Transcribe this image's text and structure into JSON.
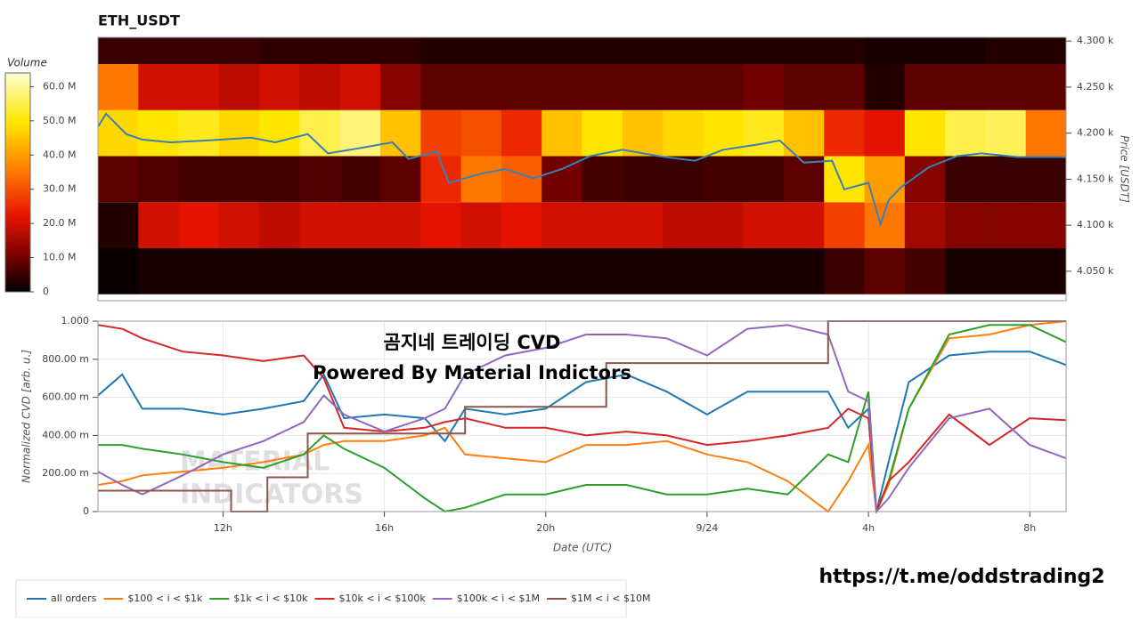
{
  "chart_data": [
    {
      "type": "heatmap",
      "title": "ETH_USDT",
      "colorbar_title": "Volume",
      "y_label": "Price [USDT]",
      "xlim": [
        8.9,
        32.9
      ],
      "ylim": [
        4018,
        4304
      ],
      "zlim": [
        0,
        64
      ],
      "yticks": [
        {
          "value": 4050,
          "label": "4.050 k"
        },
        {
          "value": 4100,
          "label": "4.100 k"
        },
        {
          "value": 4150,
          "label": "4.150 k"
        },
        {
          "value": 4200,
          "label": "4.200 k"
        },
        {
          "value": 4250,
          "label": "4.250 k"
        },
        {
          "value": 4300,
          "label": "4.300 k"
        }
      ],
      "zticks": [
        0,
        {
          "value": 10,
          "label": "10.0 M"
        },
        {
          "value": 20,
          "label": "20.0 M"
        },
        {
          "value": 30,
          "label": "30.0 M"
        },
        {
          "value": 40,
          "label": "40.0 M"
        },
        {
          "value": 50,
          "label": "50.0 M"
        },
        {
          "value": 60,
          "label": "60.0 M"
        }
      ],
      "xbins": [
        8.9,
        9.9,
        10.9,
        11.9,
        12.9,
        13.9,
        14.9,
        15.9,
        16.9,
        17.9,
        18.9,
        19.9,
        20.9,
        21.9,
        22.9,
        23.9,
        24.9,
        25.9,
        26.9,
        27.9,
        28.9,
        29.9,
        30.9,
        31.9,
        32.9
      ],
      "ybins": [
        4025,
        4075,
        4125,
        4175,
        4225,
        4275,
        4325
      ],
      "z": [
        [
          1,
          2,
          2,
          2,
          2,
          2,
          2,
          2,
          2,
          2,
          2,
          2,
          2,
          2,
          2,
          2,
          2,
          2,
          5,
          8,
          6,
          2,
          2,
          2
        ],
        [
          3,
          20,
          22,
          20,
          18,
          20,
          20,
          20,
          22,
          20,
          22,
          20,
          20,
          20,
          18,
          18,
          20,
          20,
          28,
          35,
          15,
          12,
          12,
          12
        ],
        [
          8,
          7,
          6,
          6,
          6,
          7,
          6,
          8,
          25,
          35,
          32,
          10,
          6,
          5,
          5,
          6,
          6,
          8,
          50,
          40,
          12,
          5,
          5,
          5
        ],
        [
          48,
          50,
          52,
          48,
          50,
          55,
          58,
          45,
          28,
          30,
          25,
          45,
          50,
          45,
          48,
          50,
          52,
          45,
          25,
          22,
          50,
          55,
          56,
          35
        ],
        [
          35,
          20,
          20,
          18,
          20,
          18,
          20,
          12,
          8,
          8,
          8,
          8,
          8,
          8,
          8,
          8,
          10,
          8,
          8,
          3,
          8,
          8,
          8,
          8
        ],
        [
          5,
          5,
          5,
          5,
          4,
          4,
          4,
          4,
          3,
          3,
          3,
          3,
          3,
          3,
          3,
          3,
          3,
          3,
          3,
          2,
          2,
          2,
          3,
          3
        ]
      ],
      "line": {
        "color": "#3a7fb5",
        "x": [
          8.9,
          9.1,
          9.6,
          10.0,
          10.7,
          11.6,
          12.7,
          13.3,
          14.1,
          14.6,
          15.3,
          16.2,
          16.6,
          17.3,
          17.6,
          18.4,
          19.0,
          19.7,
          20.4,
          21.1,
          21.9,
          22.8,
          23.7,
          24.4,
          25.3,
          25.8,
          26.4,
          27.1,
          27.4,
          28.0,
          28.3,
          28.5,
          28.8,
          29.5,
          30.2,
          30.8,
          31.7,
          32.9
        ],
        "values": [
          4207,
          4221,
          4199,
          4193,
          4190,
          4192,
          4195,
          4190,
          4199,
          4178,
          4183,
          4190,
          4172,
          4180,
          4146,
          4156,
          4161,
          4151,
          4161,
          4175,
          4182,
          4175,
          4170,
          4182,
          4188,
          4192,
          4168,
          4170,
          4139,
          4146,
          4101,
          4127,
          4141,
          4163,
          4175,
          4178,
          4174,
          4174
        ]
      }
    },
    {
      "type": "line",
      "x_label": "Date (UTC)",
      "y_label": "Normalized CVD [arb. u.]",
      "overlay": [
        "곰지네 트레이딩 CVD",
        "Powered By Material Indictors"
      ],
      "watermark": [
        "MATERIAL",
        "INDICATORS"
      ],
      "xlim": [
        8.9,
        32.9
      ],
      "ylim": [
        0,
        1
      ],
      "grid": true,
      "xticks": [
        {
          "value": 12,
          "label": "12h"
        },
        {
          "value": 16,
          "label": "16h"
        },
        {
          "value": 20,
          "label": "20h"
        },
        {
          "value": 24,
          "label": "9/24"
        },
        {
          "value": 28,
          "label": "4h"
        },
        {
          "value": 32,
          "label": "8h"
        }
      ],
      "yticks": [
        0,
        {
          "value": 0.2,
          "label": "200.00 m"
        },
        {
          "value": 0.4,
          "label": "400.00 m"
        },
        {
          "value": 0.6,
          "label": "600.00 m"
        },
        {
          "value": 0.8,
          "label": "800.00 m"
        },
        {
          "value": 1,
          "label": "1.000"
        }
      ],
      "x": [
        8.9,
        9.5,
        10,
        11,
        12,
        13,
        14,
        14.5,
        15,
        16,
        17,
        17.5,
        18,
        19,
        20,
        21,
        22,
        23,
        24,
        25,
        26,
        27,
        27.5,
        28,
        28.2,
        28.5,
        29,
        30,
        31,
        32,
        32.9
      ],
      "series": [
        {
          "name": "all orders",
          "color": "#1f77b4",
          "values": [
            0.61,
            0.72,
            0.54,
            0.54,
            0.51,
            0.54,
            0.58,
            0.72,
            0.49,
            0.51,
            0.49,
            0.37,
            0.54,
            0.51,
            0.54,
            0.68,
            0.72,
            0.63,
            0.51,
            0.63,
            0.63,
            0.63,
            0.44,
            0.54,
            0.0,
            0.26,
            0.68,
            0.82,
            0.84,
            0.84,
            0.77
          ]
        },
        {
          "name": "$100 < i < $1k",
          "color": "#ff7f0e",
          "values": [
            0.14,
            0.16,
            0.19,
            0.21,
            0.23,
            0.26,
            0.3,
            0.35,
            0.37,
            0.37,
            0.4,
            0.44,
            0.3,
            0.28,
            0.26,
            0.35,
            0.35,
            0.37,
            0.3,
            0.26,
            0.16,
            0.0,
            0.16,
            0.35,
            0.0,
            0.14,
            0.54,
            0.91,
            0.93,
            0.98,
            1.0
          ]
        },
        {
          "name": "$1k < i < $10k",
          "color": "#2ca02c",
          "values": [
            0.35,
            0.35,
            0.33,
            0.3,
            0.26,
            0.23,
            0.3,
            0.4,
            0.33,
            0.23,
            0.07,
            0.0,
            0.02,
            0.09,
            0.09,
            0.14,
            0.14,
            0.09,
            0.09,
            0.12,
            0.09,
            0.3,
            0.26,
            0.63,
            0.0,
            0.16,
            0.54,
            0.93,
            0.98,
            0.98,
            0.89
          ]
        },
        {
          "name": "$10k < i < $100k",
          "color": "#d62728",
          "values": [
            0.98,
            0.96,
            0.91,
            0.84,
            0.82,
            0.79,
            0.82,
            0.7,
            0.44,
            0.42,
            0.44,
            0.47,
            0.49,
            0.44,
            0.44,
            0.4,
            0.42,
            0.4,
            0.35,
            0.37,
            0.4,
            0.44,
            0.54,
            0.49,
            0.0,
            0.16,
            0.26,
            0.51,
            0.35,
            0.49,
            0.48
          ]
        },
        {
          "name": "$100k < i < $1M",
          "color": "#9467bd",
          "values": [
            0.21,
            0.14,
            0.09,
            0.19,
            0.3,
            0.37,
            0.47,
            0.61,
            0.51,
            0.42,
            0.49,
            0.54,
            0.72,
            0.82,
            0.86,
            0.93,
            0.93,
            0.91,
            0.82,
            0.96,
            0.98,
            0.93,
            0.63,
            0.58,
            0.0,
            0.07,
            0.23,
            0.49,
            0.54,
            0.35,
            0.28
          ]
        },
        {
          "name": "$1M < i < $10M",
          "color": "#8c564b",
          "x": [
            8.9,
            12.2,
            12.2,
            13.1,
            13.1,
            14.1,
            14.1,
            18,
            18,
            21.5,
            21.5,
            27,
            27,
            32.9
          ],
          "values": [
            0.11,
            0.11,
            0,
            0,
            0.18,
            0.18,
            0.41,
            0.41,
            0.55,
            0.55,
            0.78,
            0.78,
            1,
            1
          ]
        }
      ]
    },
    {
      "type": "note",
      "url": "https://t.me/oddstrading2"
    }
  ]
}
